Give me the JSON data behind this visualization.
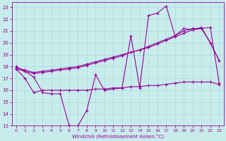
{
  "xlabel": "Windchill (Refroidissement éolien,°C)",
  "background_color": "#c8ecec",
  "grid_color": "#aadddd",
  "line_color": "#990099",
  "spine_color": "#990099",
  "xlim": [
    -0.5,
    23.5
  ],
  "ylim": [
    13,
    23.4
  ],
  "yticks": [
    13,
    14,
    15,
    16,
    17,
    18,
    19,
    20,
    21,
    22,
    23
  ],
  "xticks": [
    0,
    1,
    2,
    3,
    4,
    5,
    6,
    7,
    8,
    9,
    10,
    11,
    12,
    13,
    14,
    15,
    16,
    17,
    18,
    19,
    20,
    21,
    22,
    23
  ],
  "line1_x": [
    0,
    1,
    2,
    3,
    4,
    5,
    6,
    7,
    8,
    9,
    10,
    11,
    12,
    13,
    14,
    15,
    16,
    17,
    18,
    19,
    20,
    21,
    22,
    23
  ],
  "line1_y": [
    18.0,
    17.6,
    17.1,
    15.8,
    15.7,
    15.7,
    13.0,
    13.0,
    14.3,
    17.3,
    16.0,
    16.1,
    16.2,
    20.6,
    16.2,
    22.3,
    22.5,
    23.1,
    20.6,
    21.2,
    21.1,
    21.3,
    20.0,
    18.5
  ],
  "line2_x": [
    0,
    1,
    2,
    3,
    4,
    5,
    6,
    7,
    8,
    9,
    10,
    11,
    12,
    13,
    14,
    15,
    16,
    17,
    18,
    19,
    20,
    21,
    22,
    23
  ],
  "line2_y": [
    17.9,
    17.7,
    17.5,
    17.6,
    17.7,
    17.8,
    17.9,
    18.0,
    18.2,
    18.4,
    18.6,
    18.8,
    19.0,
    19.2,
    19.4,
    19.6,
    19.9,
    20.2,
    20.5,
    20.8,
    21.1,
    21.2,
    21.3,
    16.6
  ],
  "line3_x": [
    0,
    1,
    2,
    3,
    4,
    5,
    6,
    7,
    8,
    9,
    10,
    11,
    12,
    13,
    14,
    15,
    16,
    17,
    18,
    19,
    20,
    21,
    22,
    23
  ],
  "line3_y": [
    17.8,
    17.6,
    17.4,
    17.5,
    17.6,
    17.7,
    17.8,
    17.9,
    18.1,
    18.3,
    18.5,
    18.7,
    18.9,
    19.2,
    19.4,
    19.7,
    20.0,
    20.3,
    20.6,
    21.0,
    21.2,
    21.2,
    20.0,
    18.5
  ],
  "line4_x": [
    0,
    1,
    2,
    3,
    4,
    5,
    6,
    7,
    8,
    9,
    10,
    11,
    12,
    13,
    14,
    15,
    16,
    17,
    18,
    19,
    20,
    21,
    22,
    23
  ],
  "line4_y": [
    17.8,
    17.0,
    15.8,
    16.0,
    16.0,
    16.0,
    16.0,
    16.0,
    16.0,
    16.1,
    16.1,
    16.2,
    16.2,
    16.3,
    16.3,
    16.4,
    16.4,
    16.5,
    16.6,
    16.7,
    16.7,
    16.7,
    16.7,
    16.5
  ]
}
